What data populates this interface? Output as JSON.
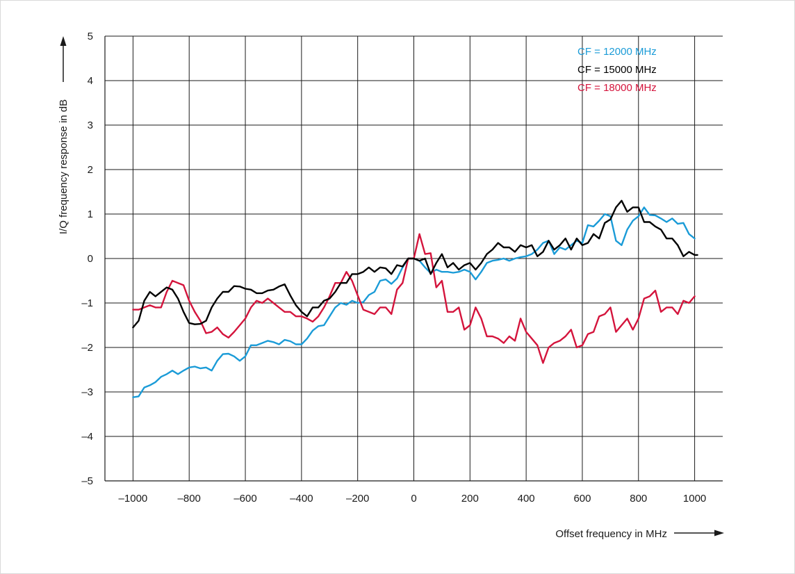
{
  "chart_data": {
    "type": "line",
    "title": "",
    "xlabel": "Offset frequency in MHz",
    "ylabel": "I/Q frequency response in dB",
    "xlim": [
      -1100,
      1100
    ],
    "ylim": [
      -5,
      5
    ],
    "x_ticks": [
      -1000,
      -800,
      -600,
      -400,
      -200,
      0,
      200,
      400,
      600,
      800,
      1000
    ],
    "x_tick_labels": [
      "–1000",
      "–800",
      "–600",
      "–400",
      "–200",
      "0",
      "200",
      "400",
      "600",
      "800",
      "1000"
    ],
    "y_ticks": [
      -5,
      -4,
      -3,
      -2,
      -1,
      0,
      1,
      2,
      3,
      4,
      5
    ],
    "y_tick_labels": [
      "–5",
      "–4",
      "–3",
      "–2",
      "–1",
      "0",
      "1",
      "2",
      "3",
      "4",
      "5"
    ],
    "grid": true,
    "legend_position": "top-right",
    "series": [
      {
        "name": "CF = 12000 MHz",
        "color": "#1a9bd7",
        "points": [
          [
            -1000,
            -3.12
          ],
          [
            -980,
            -3.1
          ],
          [
            -960,
            -2.9
          ],
          [
            -940,
            -2.85
          ],
          [
            -920,
            -2.78
          ],
          [
            -900,
            -2.66
          ],
          [
            -880,
            -2.6
          ],
          [
            -860,
            -2.52
          ],
          [
            -840,
            -2.6
          ],
          [
            -820,
            -2.52
          ],
          [
            -800,
            -2.45
          ],
          [
            -780,
            -2.43
          ],
          [
            -760,
            -2.47
          ],
          [
            -740,
            -2.45
          ],
          [
            -720,
            -2.52
          ],
          [
            -700,
            -2.3
          ],
          [
            -680,
            -2.15
          ],
          [
            -660,
            -2.14
          ],
          [
            -640,
            -2.2
          ],
          [
            -620,
            -2.3
          ],
          [
            -600,
            -2.2
          ],
          [
            -580,
            -1.95
          ],
          [
            -560,
            -1.95
          ],
          [
            -540,
            -1.9
          ],
          [
            -520,
            -1.85
          ],
          [
            -500,
            -1.88
          ],
          [
            -480,
            -1.93
          ],
          [
            -460,
            -1.83
          ],
          [
            -440,
            -1.86
          ],
          [
            -420,
            -1.93
          ],
          [
            -400,
            -1.93
          ],
          [
            -380,
            -1.8
          ],
          [
            -360,
            -1.62
          ],
          [
            -340,
            -1.52
          ],
          [
            -320,
            -1.5
          ],
          [
            -300,
            -1.3
          ],
          [
            -280,
            -1.1
          ],
          [
            -260,
            -1.0
          ],
          [
            -240,
            -1.04
          ],
          [
            -220,
            -0.95
          ],
          [
            -200,
            -1.0
          ],
          [
            -180,
            -0.98
          ],
          [
            -160,
            -0.82
          ],
          [
            -140,
            -0.75
          ],
          [
            -120,
            -0.5
          ],
          [
            -100,
            -0.47
          ],
          [
            -80,
            -0.57
          ],
          [
            -60,
            -0.45
          ],
          [
            -40,
            -0.2
          ],
          [
            -20,
            0.0
          ],
          [
            0,
            0.0
          ],
          [
            20,
            -0.05
          ],
          [
            40,
            -0.2
          ],
          [
            60,
            -0.33
          ],
          [
            80,
            -0.25
          ],
          [
            100,
            -0.3
          ],
          [
            120,
            -0.3
          ],
          [
            140,
            -0.32
          ],
          [
            160,
            -0.3
          ],
          [
            180,
            -0.25
          ],
          [
            200,
            -0.3
          ],
          [
            220,
            -0.47
          ],
          [
            240,
            -0.3
          ],
          [
            260,
            -0.1
          ],
          [
            280,
            -0.05
          ],
          [
            300,
            -0.03
          ],
          [
            320,
            0.0
          ],
          [
            340,
            -0.05
          ],
          [
            360,
            0.0
          ],
          [
            380,
            0.03
          ],
          [
            400,
            0.05
          ],
          [
            420,
            0.1
          ],
          [
            440,
            0.2
          ],
          [
            460,
            0.35
          ],
          [
            480,
            0.4
          ],
          [
            500,
            0.1
          ],
          [
            520,
            0.25
          ],
          [
            540,
            0.2
          ],
          [
            560,
            0.3
          ],
          [
            580,
            0.4
          ],
          [
            600,
            0.35
          ],
          [
            620,
            0.75
          ],
          [
            640,
            0.72
          ],
          [
            660,
            0.85
          ],
          [
            680,
            1.0
          ],
          [
            700,
            0.95
          ],
          [
            720,
            0.4
          ],
          [
            740,
            0.3
          ],
          [
            760,
            0.65
          ],
          [
            780,
            0.85
          ],
          [
            800,
            0.95
          ],
          [
            820,
            1.15
          ],
          [
            840,
            0.98
          ],
          [
            860,
            0.97
          ],
          [
            880,
            0.9
          ],
          [
            900,
            0.82
          ],
          [
            920,
            0.9
          ],
          [
            940,
            0.78
          ],
          [
            960,
            0.8
          ],
          [
            980,
            0.55
          ],
          [
            1000,
            0.45
          ]
        ]
      },
      {
        "name": "CF = 15000 MHz",
        "color": "#000000",
        "points": [
          [
            -1000,
            -1.55
          ],
          [
            -980,
            -1.4
          ],
          [
            -960,
            -0.95
          ],
          [
            -940,
            -0.75
          ],
          [
            -920,
            -0.85
          ],
          [
            -900,
            -0.75
          ],
          [
            -880,
            -0.65
          ],
          [
            -860,
            -0.7
          ],
          [
            -840,
            -0.9
          ],
          [
            -820,
            -1.2
          ],
          [
            -800,
            -1.45
          ],
          [
            -780,
            -1.48
          ],
          [
            -760,
            -1.47
          ],
          [
            -740,
            -1.4
          ],
          [
            -720,
            -1.1
          ],
          [
            -700,
            -0.9
          ],
          [
            -680,
            -0.75
          ],
          [
            -660,
            -0.75
          ],
          [
            -640,
            -0.62
          ],
          [
            -620,
            -0.63
          ],
          [
            -600,
            -0.68
          ],
          [
            -580,
            -0.7
          ],
          [
            -560,
            -0.78
          ],
          [
            -540,
            -0.78
          ],
          [
            -520,
            -0.72
          ],
          [
            -500,
            -0.7
          ],
          [
            -480,
            -0.63
          ],
          [
            -460,
            -0.58
          ],
          [
            -440,
            -0.83
          ],
          [
            -420,
            -1.05
          ],
          [
            -400,
            -1.2
          ],
          [
            -380,
            -1.3
          ],
          [
            -360,
            -1.1
          ],
          [
            -340,
            -1.1
          ],
          [
            -320,
            -0.95
          ],
          [
            -300,
            -0.9
          ],
          [
            -280,
            -0.75
          ],
          [
            -260,
            -0.55
          ],
          [
            -240,
            -0.55
          ],
          [
            -220,
            -0.35
          ],
          [
            -200,
            -0.35
          ],
          [
            -180,
            -0.3
          ],
          [
            -160,
            -0.2
          ],
          [
            -140,
            -0.3
          ],
          [
            -120,
            -0.2
          ],
          [
            -100,
            -0.22
          ],
          [
            -80,
            -0.35
          ],
          [
            -60,
            -0.15
          ],
          [
            -40,
            -0.18
          ],
          [
            -20,
            0.0
          ],
          [
            0,
            0.0
          ],
          [
            20,
            -0.05
          ],
          [
            40,
            0.0
          ],
          [
            60,
            -0.35
          ],
          [
            80,
            -0.1
          ],
          [
            100,
            0.1
          ],
          [
            120,
            -0.2
          ],
          [
            140,
            -0.1
          ],
          [
            160,
            -0.25
          ],
          [
            180,
            -0.15
          ],
          [
            200,
            -0.1
          ],
          [
            220,
            -0.25
          ],
          [
            240,
            -0.1
          ],
          [
            260,
            0.1
          ],
          [
            280,
            0.2
          ],
          [
            300,
            0.35
          ],
          [
            320,
            0.25
          ],
          [
            340,
            0.25
          ],
          [
            360,
            0.15
          ],
          [
            380,
            0.3
          ],
          [
            400,
            0.25
          ],
          [
            420,
            0.3
          ],
          [
            440,
            0.05
          ],
          [
            460,
            0.15
          ],
          [
            480,
            0.4
          ],
          [
            500,
            0.2
          ],
          [
            520,
            0.3
          ],
          [
            540,
            0.45
          ],
          [
            560,
            0.2
          ],
          [
            580,
            0.45
          ],
          [
            600,
            0.3
          ],
          [
            620,
            0.35
          ],
          [
            640,
            0.55
          ],
          [
            660,
            0.45
          ],
          [
            680,
            0.8
          ],
          [
            700,
            0.88
          ],
          [
            720,
            1.15
          ],
          [
            740,
            1.3
          ],
          [
            760,
            1.05
          ],
          [
            780,
            1.15
          ],
          [
            800,
            1.15
          ],
          [
            820,
            0.82
          ],
          [
            840,
            0.82
          ],
          [
            860,
            0.72
          ],
          [
            880,
            0.65
          ],
          [
            900,
            0.45
          ],
          [
            920,
            0.45
          ],
          [
            940,
            0.3
          ],
          [
            960,
            0.05
          ],
          [
            980,
            0.15
          ],
          [
            1000,
            0.08
          ],
          [
            1010,
            0.08
          ]
        ]
      },
      {
        "name": "CF = 18000 MHz",
        "color": "#d4143c",
        "points": [
          [
            -1000,
            -1.15
          ],
          [
            -980,
            -1.15
          ],
          [
            -960,
            -1.1
          ],
          [
            -940,
            -1.05
          ],
          [
            -920,
            -1.1
          ],
          [
            -900,
            -1.1
          ],
          [
            -880,
            -0.75
          ],
          [
            -860,
            -0.5
          ],
          [
            -840,
            -0.55
          ],
          [
            -820,
            -0.6
          ],
          [
            -800,
            -0.95
          ],
          [
            -780,
            -1.2
          ],
          [
            -760,
            -1.4
          ],
          [
            -740,
            -1.68
          ],
          [
            -720,
            -1.65
          ],
          [
            -700,
            -1.55
          ],
          [
            -680,
            -1.7
          ],
          [
            -660,
            -1.78
          ],
          [
            -640,
            -1.65
          ],
          [
            -620,
            -1.5
          ],
          [
            -600,
            -1.35
          ],
          [
            -580,
            -1.1
          ],
          [
            -560,
            -0.95
          ],
          [
            -540,
            -1.0
          ],
          [
            -520,
            -0.9
          ],
          [
            -500,
            -1.0
          ],
          [
            -480,
            -1.1
          ],
          [
            -460,
            -1.2
          ],
          [
            -440,
            -1.2
          ],
          [
            -420,
            -1.3
          ],
          [
            -400,
            -1.3
          ],
          [
            -380,
            -1.35
          ],
          [
            -360,
            -1.42
          ],
          [
            -340,
            -1.3
          ],
          [
            -320,
            -1.1
          ],
          [
            -300,
            -0.85
          ],
          [
            -280,
            -0.55
          ],
          [
            -260,
            -0.55
          ],
          [
            -240,
            -0.3
          ],
          [
            -220,
            -0.5
          ],
          [
            -200,
            -0.83
          ],
          [
            -180,
            -1.15
          ],
          [
            -160,
            -1.2
          ],
          [
            -140,
            -1.25
          ],
          [
            -120,
            -1.1
          ],
          [
            -100,
            -1.1
          ],
          [
            -80,
            -1.25
          ],
          [
            -60,
            -0.7
          ],
          [
            -40,
            -0.55
          ],
          [
            -20,
            0.0
          ],
          [
            0,
            0.0
          ],
          [
            20,
            0.55
          ],
          [
            40,
            0.1
          ],
          [
            60,
            0.12
          ],
          [
            80,
            -0.65
          ],
          [
            100,
            -0.5
          ],
          [
            120,
            -1.2
          ],
          [
            140,
            -1.2
          ],
          [
            160,
            -1.1
          ],
          [
            180,
            -1.6
          ],
          [
            200,
            -1.5
          ],
          [
            220,
            -1.1
          ],
          [
            240,
            -1.35
          ],
          [
            260,
            -1.75
          ],
          [
            280,
            -1.75
          ],
          [
            300,
            -1.8
          ],
          [
            320,
            -1.9
          ],
          [
            340,
            -1.75
          ],
          [
            360,
            -1.85
          ],
          [
            380,
            -1.35
          ],
          [
            400,
            -1.65
          ],
          [
            420,
            -1.8
          ],
          [
            440,
            -1.95
          ],
          [
            460,
            -2.35
          ],
          [
            480,
            -2.0
          ],
          [
            500,
            -1.9
          ],
          [
            520,
            -1.85
          ],
          [
            540,
            -1.75
          ],
          [
            560,
            -1.6
          ],
          [
            580,
            -2.0
          ],
          [
            600,
            -1.95
          ],
          [
            620,
            -1.7
          ],
          [
            640,
            -1.65
          ],
          [
            660,
            -1.3
          ],
          [
            680,
            -1.25
          ],
          [
            700,
            -1.1
          ],
          [
            720,
            -1.65
          ],
          [
            740,
            -1.5
          ],
          [
            760,
            -1.35
          ],
          [
            780,
            -1.6
          ],
          [
            800,
            -1.35
          ],
          [
            820,
            -0.9
          ],
          [
            840,
            -0.85
          ],
          [
            860,
            -0.72
          ],
          [
            880,
            -1.2
          ],
          [
            900,
            -1.1
          ],
          [
            920,
            -1.1
          ],
          [
            940,
            -1.25
          ],
          [
            960,
            -0.95
          ],
          [
            980,
            -1.0
          ],
          [
            1000,
            -0.85
          ]
        ]
      }
    ]
  }
}
